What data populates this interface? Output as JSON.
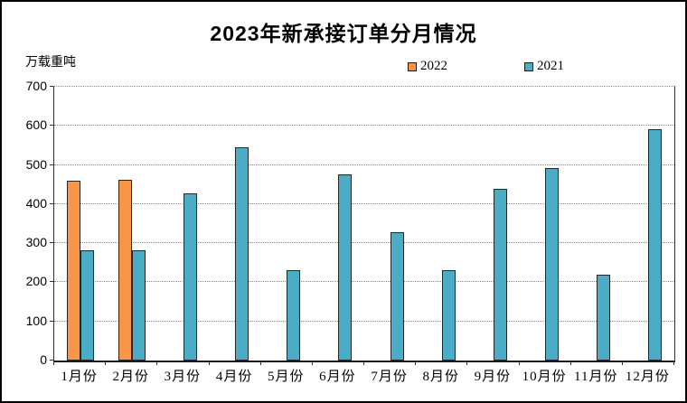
{
  "title": "2023年新承接订单分月情况",
  "y_axis": {
    "unit_label": "万载重吨",
    "ticks": [
      0,
      100,
      200,
      300,
      400,
      500,
      600,
      700
    ],
    "max": 700
  },
  "legend": {
    "items": [
      {
        "label": "2022",
        "color": "#F79646"
      },
      {
        "label": "2021",
        "color": "#4BACC6"
      }
    ]
  },
  "chart_data": {
    "type": "bar",
    "title": "2023年新承接订单分月情况",
    "ylabel": "万载重吨",
    "ylim": [
      0,
      700
    ],
    "grid": "horizontal-dotted",
    "legend_position": "top",
    "categories": [
      "1月份",
      "2月份",
      "3月份",
      "4月份",
      "5月份",
      "6月份",
      "7月份",
      "8月份",
      "9月份",
      "10月份",
      "11月份",
      "12月份"
    ],
    "series": [
      {
        "name": "2022",
        "color": "#F79646",
        "values": [
          460,
          463,
          null,
          null,
          null,
          null,
          null,
          null,
          null,
          null,
          null,
          null
        ]
      },
      {
        "name": "2021",
        "color": "#4BACC6",
        "values": [
          281,
          283,
          428,
          546,
          230,
          477,
          327,
          232,
          440,
          493,
          220,
          591
        ]
      }
    ]
  }
}
